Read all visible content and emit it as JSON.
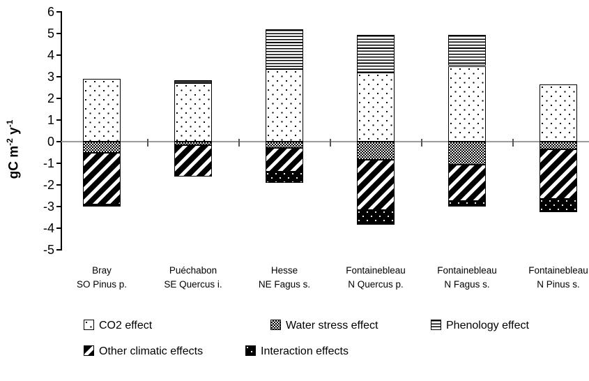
{
  "chart_data": {
    "type": "bar",
    "stacked": true,
    "title": "",
    "xlabel": "",
    "ylabel": "gC m-2 y-1",
    "ylabel_parts": {
      "p1": "gC m",
      "s1": "-2",
      "p2": " y",
      "s2": "-1"
    },
    "ylim": [
      -5,
      6
    ],
    "yticks": [
      6,
      5,
      4,
      3,
      2,
      1,
      0,
      -1,
      -2,
      -3,
      -4,
      -5
    ],
    "grid": "zero-line-only",
    "legend_position": "bottom",
    "categories": [
      {
        "site": "Bray",
        "stand": "SO Pinus p."
      },
      {
        "site": "Puéchabon",
        "stand": "SE Quercus i."
      },
      {
        "site": "Hesse",
        "stand": "NE Fagus s."
      },
      {
        "site": "Fontainebleau",
        "stand": "N Quercus p."
      },
      {
        "site": "Fontainebleau",
        "stand": "N Fagus s."
      },
      {
        "site": "Fontainebleau",
        "stand": "N Pinus s."
      }
    ],
    "series": [
      {
        "name": "CO2 effect",
        "pattern": "co2-dots",
        "values": [
          2.9,
          2.7,
          3.35,
          3.2,
          3.5,
          2.65
        ]
      },
      {
        "name": "Water stress effect",
        "pattern": "ws-checker",
        "values": [
          -0.5,
          -0.15,
          -0.3,
          -0.85,
          -1.05,
          -0.35
        ]
      },
      {
        "name": "Phenology effect",
        "pattern": "phen-hlines",
        "values": [
          0,
          0.15,
          1.85,
          1.75,
          1.45,
          0
        ]
      },
      {
        "name": "Other climatic effects",
        "pattern": "oc-diag",
        "values": [
          -2.4,
          -1.45,
          -1.1,
          -2.3,
          -1.7,
          -2.3
        ]
      },
      {
        "name": "Interaction effects",
        "pattern": "int-blackdots",
        "values": [
          -0.1,
          0,
          -0.5,
          -0.7,
          -0.25,
          -0.6
        ]
      }
    ],
    "legend_rows": [
      [
        0,
        1,
        2
      ],
      [
        3,
        4
      ]
    ]
  }
}
